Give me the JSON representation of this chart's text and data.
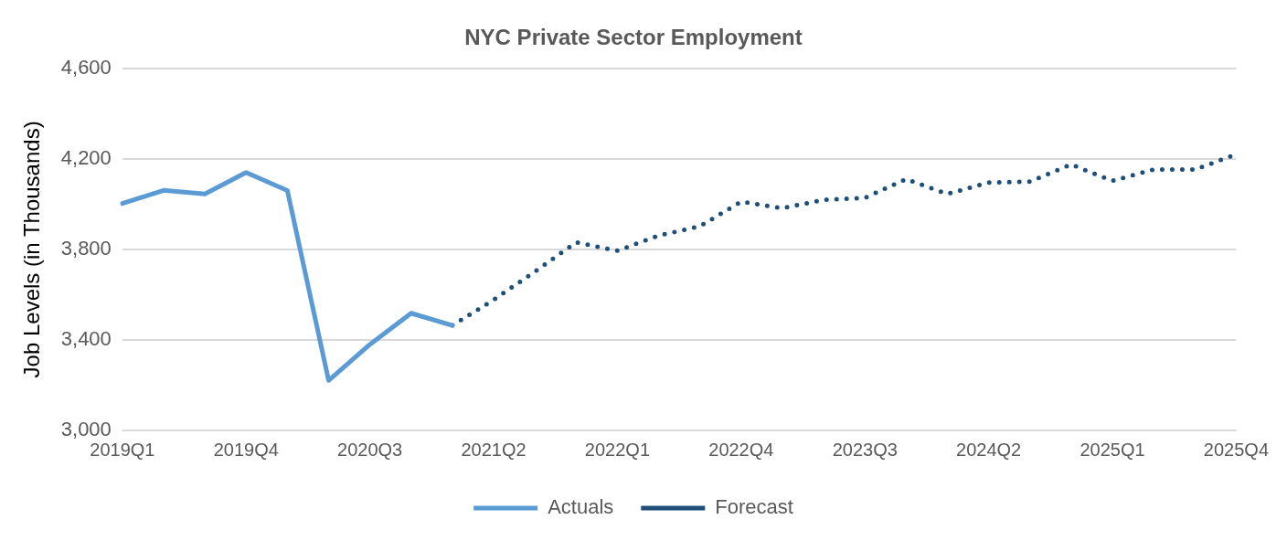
{
  "chart_data": {
    "type": "line",
    "title": "NYC Private Sector Employment",
    "ylabel": "Job Levels (in Thousands)",
    "categories": [
      "2019Q1",
      null,
      null,
      "2019Q4",
      null,
      null,
      "2020Q3",
      null,
      null,
      "2021Q2",
      null,
      null,
      "2022Q1",
      null,
      null,
      "2022Q4",
      null,
      null,
      "2023Q3",
      null,
      null,
      "2024Q2",
      null,
      null,
      "2025Q1",
      null,
      null,
      "2025Q4"
    ],
    "series": [
      {
        "name": "Actuals",
        "color": "#5b9bd5",
        "line_style": "solid",
        "values": [
          4003,
          4061,
          4045,
          4140,
          4060,
          3221,
          3380,
          3518,
          3464,
          null,
          null,
          null,
          null,
          null,
          null,
          null,
          null,
          null,
          null,
          null,
          null,
          null,
          null,
          null,
          null,
          null,
          null,
          null
        ]
      },
      {
        "name": "Forecast",
        "color": "#1f4e79",
        "line_style": "dotted",
        "values": [
          null,
          null,
          null,
          null,
          null,
          null,
          null,
          null,
          3464,
          3577,
          3702,
          3831,
          3794,
          3861,
          3902,
          4011,
          3982,
          4019,
          4028,
          4111,
          4045,
          4095,
          4100,
          4175,
          4103,
          4153,
          4153,
          4220
        ]
      }
    ],
    "ylim": [
      3000,
      4600
    ],
    "yticks": [
      {
        "value": 3000,
        "label": "3,000"
      },
      {
        "value": 3400,
        "label": "3,400"
      },
      {
        "value": 3800,
        "label": "3,800"
      },
      {
        "value": 4200,
        "label": "4,200"
      },
      {
        "value": 4600,
        "label": "4,600"
      }
    ],
    "grid": "y",
    "legend": "bottom",
    "marker": "none"
  }
}
